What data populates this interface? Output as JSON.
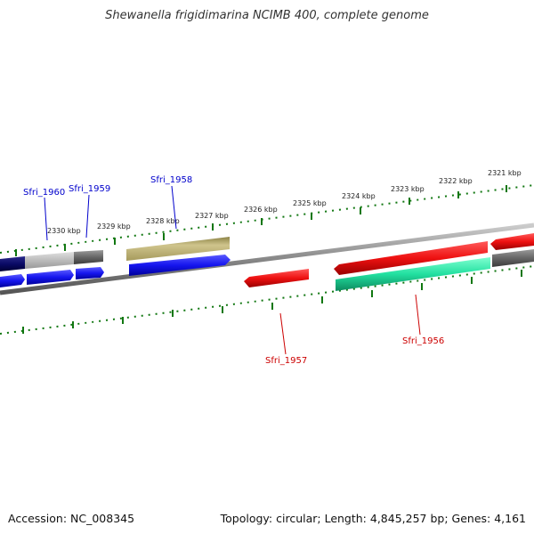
{
  "title": "Shewanella frigidimarina NCIMB 400, complete genome",
  "footer": {
    "accession": "Accession: NC_008345",
    "summary": "Topology: circular; Length: 4,845,257 bp; Genes: 4,161"
  },
  "scale": {
    "tick_labels": [
      "2321 kbp",
      "2322 kbp",
      "2323 kbp",
      "2324 kbp",
      "2325 kbp",
      "2326 kbp",
      "2327 kbp",
      "2328 kbp",
      "2329 kbp",
      "2330 kbp"
    ]
  },
  "genes": {
    "forward": [
      {
        "name": "Sfri_1958",
        "color": "#0000cc"
      },
      {
        "name": "Sfri_1959",
        "color": "#0000cc"
      },
      {
        "name": "Sfri_1960",
        "color": "#0000cc"
      }
    ],
    "reverse": [
      {
        "name": "Sfri_1956",
        "color": "#cc0000"
      },
      {
        "name": "Sfri_1957",
        "color": "#cc0000"
      }
    ]
  },
  "colors": {
    "forward_cds": "#1a1aee",
    "reverse_cds": "#ee1111",
    "olive_feature": "#b8ac6e",
    "teal_feature": "#22e0a0",
    "gray_feature": "#666666",
    "tick": "#117711",
    "backbone": "#888888"
  }
}
